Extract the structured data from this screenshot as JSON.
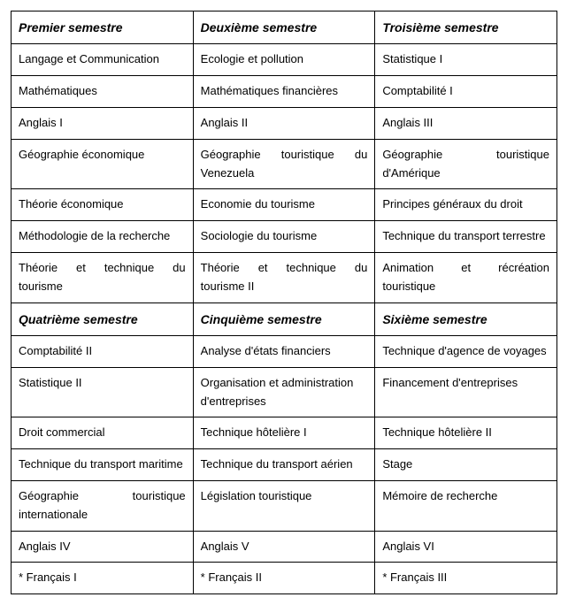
{
  "table": {
    "columns": 3,
    "column_widths": [
      "33.33%",
      "33.33%",
      "33.33%"
    ],
    "border_color": "#000000",
    "background_color": "#ffffff",
    "text_color": "#000000",
    "font_family": "Arial",
    "header_fontsize": 14,
    "cell_fontsize": 13,
    "rows": [
      {
        "type": "header",
        "cells": [
          {
            "text": "Premier semestre",
            "justify": false
          },
          {
            "text": "Deuxième semestre",
            "justify": false
          },
          {
            "text": "Troisième semestre",
            "justify": false
          }
        ]
      },
      {
        "type": "data",
        "cells": [
          {
            "text": "Langage et Communication",
            "justify": false
          },
          {
            "text": "Ecologie et pollution",
            "justify": false
          },
          {
            "text": "Statistique I",
            "justify": false
          }
        ]
      },
      {
        "type": "data",
        "cells": [
          {
            "text": "Mathématiques",
            "justify": false
          },
          {
            "text": "Mathématiques financières",
            "justify": false
          },
          {
            "text": "Comptabilité I",
            "justify": false
          }
        ]
      },
      {
        "type": "data",
        "cells": [
          {
            "text": "Anglais I",
            "justify": false
          },
          {
            "text": "Anglais II",
            "justify": false
          },
          {
            "text": "Anglais III",
            "justify": false
          }
        ]
      },
      {
        "type": "data",
        "cells": [
          {
            "text": "Géographie économique",
            "justify": false
          },
          {
            "text": "Géographie touristique du Venezuela",
            "justify": true
          },
          {
            "text": "Géographie touristique d'Amérique",
            "justify": true
          }
        ]
      },
      {
        "type": "data",
        "cells": [
          {
            "text": "Théorie économique",
            "justify": false
          },
          {
            "text": "Economie du tourisme",
            "justify": false
          },
          {
            "text": "Principes généraux du droit",
            "justify": false
          }
        ]
      },
      {
        "type": "data",
        "cells": [
          {
            "text": "Méthodologie de la recherche",
            "justify": true
          },
          {
            "text": "Sociologie du tourisme",
            "justify": false
          },
          {
            "text": "Technique du transport terrestre",
            "justify": true
          }
        ]
      },
      {
        "type": "data",
        "cells": [
          {
            "text": "Théorie et technique du tourisme",
            "justify": true
          },
          {
            "text": "Théorie et technique du tourisme II",
            "justify": true
          },
          {
            "text": "Animation et récréation touristique",
            "justify": true
          }
        ]
      },
      {
        "type": "header",
        "cells": [
          {
            "text": "Quatrième semestre",
            "justify": false
          },
          {
            "text": "Cinquième semestre",
            "justify": false
          },
          {
            "text": "Sixième semestre",
            "justify": false
          }
        ]
      },
      {
        "type": "data",
        "cells": [
          {
            "text": "Comptabilité II",
            "justify": false
          },
          {
            "text": "Analyse d'états financiers",
            "justify": false
          },
          {
            "text": "Technique d'agence de voyages",
            "justify": true
          }
        ]
      },
      {
        "type": "data",
        "cells": [
          {
            "text": "Statistique II",
            "justify": false
          },
          {
            "text": "Organisation et administration d'entreprises",
            "justify": false
          },
          {
            "text": "Financement d'entreprises",
            "justify": false
          }
        ]
      },
      {
        "type": "data",
        "cells": [
          {
            "text": "Droit commercial",
            "justify": false
          },
          {
            "text": "Technique hôtelière I",
            "justify": false
          },
          {
            "text": "Technique hôtelière II",
            "justify": false
          }
        ]
      },
      {
        "type": "data",
        "cells": [
          {
            "text": "Technique du transport maritime",
            "justify": true
          },
          {
            "text": "Technique du transport aérien",
            "justify": true
          },
          {
            "text": "Stage",
            "justify": false
          }
        ]
      },
      {
        "type": "data",
        "cells": [
          {
            "text": "Géographie touristique internationale",
            "justify": true
          },
          {
            "text": "Législation touristique",
            "justify": false
          },
          {
            "text": "Mémoire de recherche",
            "justify": false
          }
        ]
      },
      {
        "type": "data",
        "cells": [
          {
            "text": "Anglais IV",
            "justify": false
          },
          {
            "text": "Anglais V",
            "justify": false
          },
          {
            "text": "Anglais VI",
            "justify": false
          }
        ]
      },
      {
        "type": "data",
        "cells": [
          {
            "text": "* Français I",
            "justify": false
          },
          {
            "text": "* Français II",
            "justify": false
          },
          {
            "text": "* Français III",
            "justify": false
          }
        ]
      }
    ]
  }
}
